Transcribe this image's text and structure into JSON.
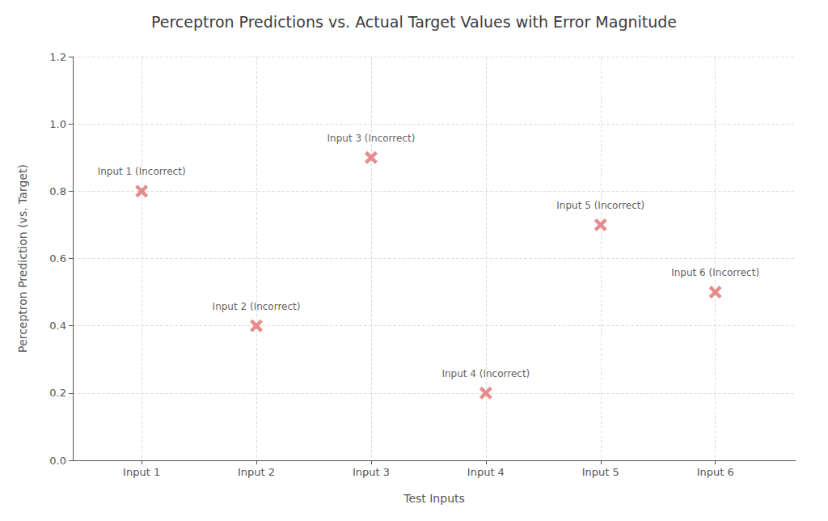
{
  "chart_data": {
    "type": "scatter",
    "title": "Perceptron Predictions vs. Actual Target Values with Error Magnitude",
    "xlabel": "Test Inputs",
    "ylabel": "Perceptron Prediction (vs. Target)",
    "x": [
      1,
      2,
      3,
      4,
      5,
      6
    ],
    "values": [
      0.8,
      0.4,
      0.9,
      0.2,
      0.7,
      0.5
    ],
    "annotations": [
      "Input 1 (Incorrect)",
      "Input 2 (Incorrect)",
      "Input 3 (Incorrect)",
      "Input 4 (Incorrect)",
      "Input 5 (Incorrect)",
      "Input 6 (Incorrect)"
    ],
    "color": "#E07070",
    "marker": "x",
    "xlim": [
      0.4,
      6.7
    ],
    "xticks": [
      {
        "value": 1,
        "label": "Input 1"
      },
      {
        "value": 2,
        "label": "Input 2"
      },
      {
        "value": 3,
        "label": "Input 3"
      },
      {
        "value": 4,
        "label": "Input 4"
      },
      {
        "value": 5,
        "label": "Input 5"
      },
      {
        "value": 6,
        "label": "Input 6"
      }
    ],
    "ylim": [
      0.0,
      1.2
    ],
    "yticks": [
      {
        "value": 0.0,
        "label": "0.0"
      },
      0.2,
      0.4,
      0.6,
      0.8,
      {
        "value": 1.0,
        "label": "1.0"
      },
      1.2
    ],
    "grid": true
  }
}
